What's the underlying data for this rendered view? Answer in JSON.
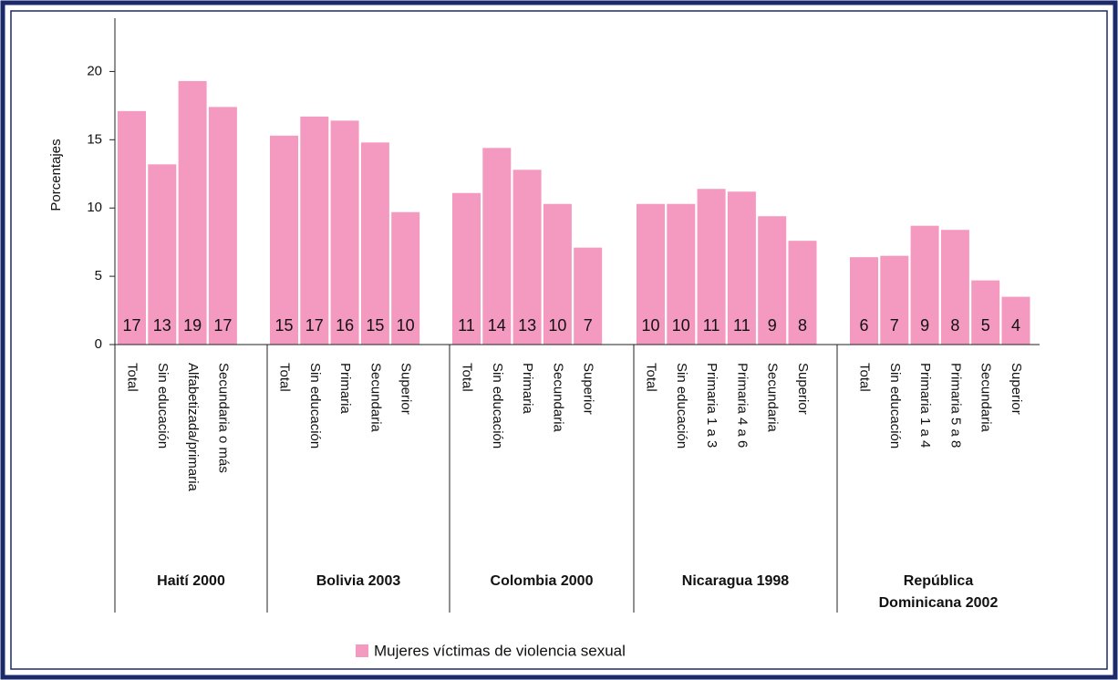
{
  "chart_data": {
    "type": "bar",
    "y_label": "Porcentajes",
    "ylim": [
      0,
      23.9
    ],
    "yticks": [
      0,
      5,
      10,
      15,
      20
    ],
    "series": [
      {
        "name": "Mujeres víctimas de violencia sexual",
        "color": "#f49ac1"
      }
    ],
    "groups": [
      {
        "name": "Haití 2000",
        "categories": [
          "Total",
          "Sin educación",
          "Alfabetizada/primaria",
          "Secundaria o más"
        ],
        "values": [
          17.1,
          13.2,
          19.3,
          17.4
        ],
        "value_labels": [
          "17",
          "13",
          "19",
          "17"
        ]
      },
      {
        "name": "Bolivia 2003",
        "categories": [
          "Total",
          "Sin educación",
          "Primaria",
          "Secundaria",
          "Superior"
        ],
        "values": [
          15.3,
          16.7,
          16.4,
          14.8,
          9.7
        ],
        "value_labels": [
          "15",
          "17",
          "16",
          "15",
          "10"
        ]
      },
      {
        "name": "Colombia 2000",
        "categories": [
          "Total",
          "Sin educación",
          "Primaria",
          "Secundaria",
          "Superior"
        ],
        "values": [
          11.1,
          14.4,
          12.8,
          10.3,
          7.1
        ],
        "value_labels": [
          "11",
          "14",
          "13",
          "10",
          "7"
        ]
      },
      {
        "name": "Nicaragua 1998",
        "categories": [
          "Total",
          "Sin educación",
          "Primaria 1 a 3",
          "Primaria 4 a 6",
          "Secundaria",
          "Superior"
        ],
        "values": [
          10.3,
          10.3,
          11.4,
          11.2,
          9.4,
          7.6
        ],
        "value_labels": [
          "10",
          "10",
          "11",
          "11",
          "9",
          "8"
        ]
      },
      {
        "name": "República\nDominicana 2002",
        "categories": [
          "Total",
          "Sin educación",
          "Primaria 1 a 4",
          "Primaria 5 a 8",
          "Secundaria",
          "Superior"
        ],
        "values": [
          6.4,
          6.5,
          8.7,
          8.4,
          4.7,
          3.5
        ],
        "value_labels": [
          "6",
          "7",
          "9",
          "8",
          "5",
          "4"
        ]
      }
    ]
  }
}
